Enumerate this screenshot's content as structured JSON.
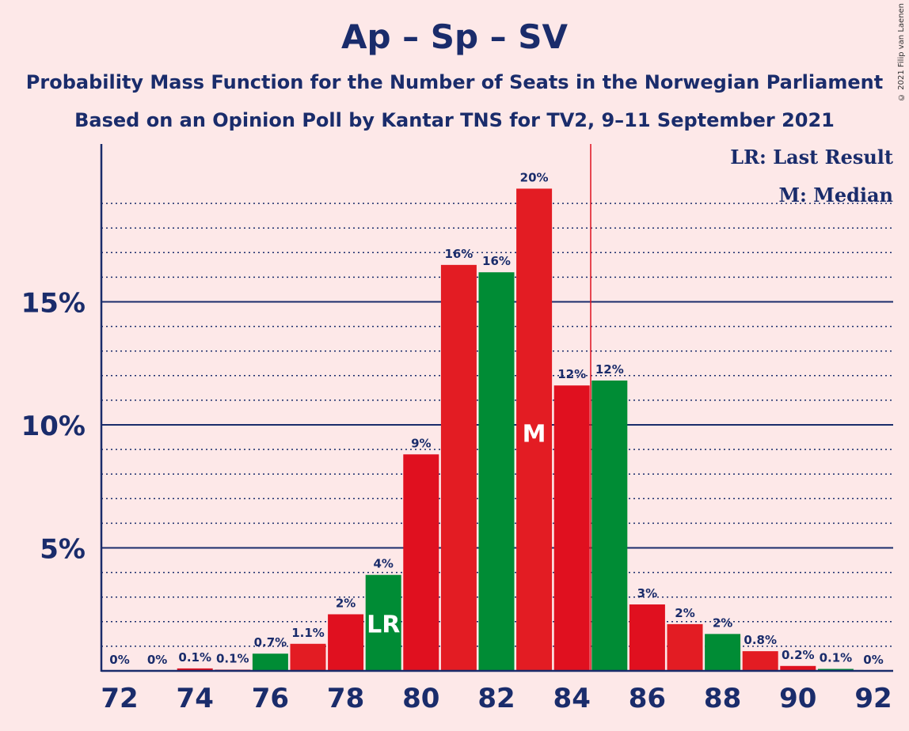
{
  "title": "Ap – Sp – SV",
  "subtitle1": "Probability Mass Function for the Number of Seats in the Norwegian Parliament",
  "subtitle2": "Based on an Opinion Poll by Kantar TNS for TV2, 9–11 September 2021",
  "copyright": "© 2021 Filip van Laenen",
  "legend": {
    "last_result": "LR: Last Result",
    "median": "M: Median"
  },
  "colors": {
    "red": "#e0101f",
    "red_alt": "#e31c23",
    "green": "#008c35",
    "axis": "#1a2c6b",
    "last_result_line": "#e0101f"
  },
  "chart_data": {
    "type": "bar",
    "xlabel": "",
    "ylabel": "",
    "x_ticks": [
      "72",
      "74",
      "76",
      "78",
      "80",
      "82",
      "84",
      "86",
      "88",
      "90",
      "92"
    ],
    "y_ticks": [
      "5%",
      "10%",
      "15%"
    ],
    "ylim": [
      0,
      21.3
    ],
    "last_result_seat": 79,
    "median_seat": 83,
    "last_result_line_after": 84,
    "bars": [
      {
        "seat": 72,
        "value": 0,
        "label": "0%",
        "color": "red"
      },
      {
        "seat": 73,
        "value": 0,
        "label": "0%",
        "color": "red"
      },
      {
        "seat": 74,
        "value": 0.1,
        "label": "0.1%",
        "color": "red"
      },
      {
        "seat": 75,
        "value": 0.05,
        "label": "0.1%",
        "color": "red"
      },
      {
        "seat": 76,
        "value": 0.7,
        "label": "0.7%",
        "color": "green"
      },
      {
        "seat": 77,
        "value": 1.1,
        "label": "1.1%",
        "color": "red"
      },
      {
        "seat": 78,
        "value": 2.3,
        "label": "2%",
        "color": "red"
      },
      {
        "seat": 79,
        "value": 3.9,
        "label": "4%",
        "color": "green",
        "marker": "LR"
      },
      {
        "seat": 80,
        "value": 8.8,
        "label": "9%",
        "color": "red"
      },
      {
        "seat": 81,
        "value": 16.5,
        "label": "16%",
        "color": "red"
      },
      {
        "seat": 82,
        "value": 16.2,
        "label": "16%",
        "color": "green"
      },
      {
        "seat": 83,
        "value": 19.6,
        "label": "20%",
        "color": "red",
        "marker": "M"
      },
      {
        "seat": 84,
        "value": 11.6,
        "label": "12%",
        "color": "red"
      },
      {
        "seat": 85,
        "value": 11.8,
        "label": "12%",
        "color": "green"
      },
      {
        "seat": 86,
        "value": 2.7,
        "label": "3%",
        "color": "red"
      },
      {
        "seat": 87,
        "value": 1.9,
        "label": "2%",
        "color": "red"
      },
      {
        "seat": 88,
        "value": 1.5,
        "label": "2%",
        "color": "green"
      },
      {
        "seat": 89,
        "value": 0.8,
        "label": "0.8%",
        "color": "red"
      },
      {
        "seat": 90,
        "value": 0.2,
        "label": "0.2%",
        "color": "red"
      },
      {
        "seat": 91,
        "value": 0.08,
        "label": "0.1%",
        "color": "green"
      },
      {
        "seat": 92,
        "value": 0,
        "label": "0%",
        "color": "red"
      }
    ]
  }
}
